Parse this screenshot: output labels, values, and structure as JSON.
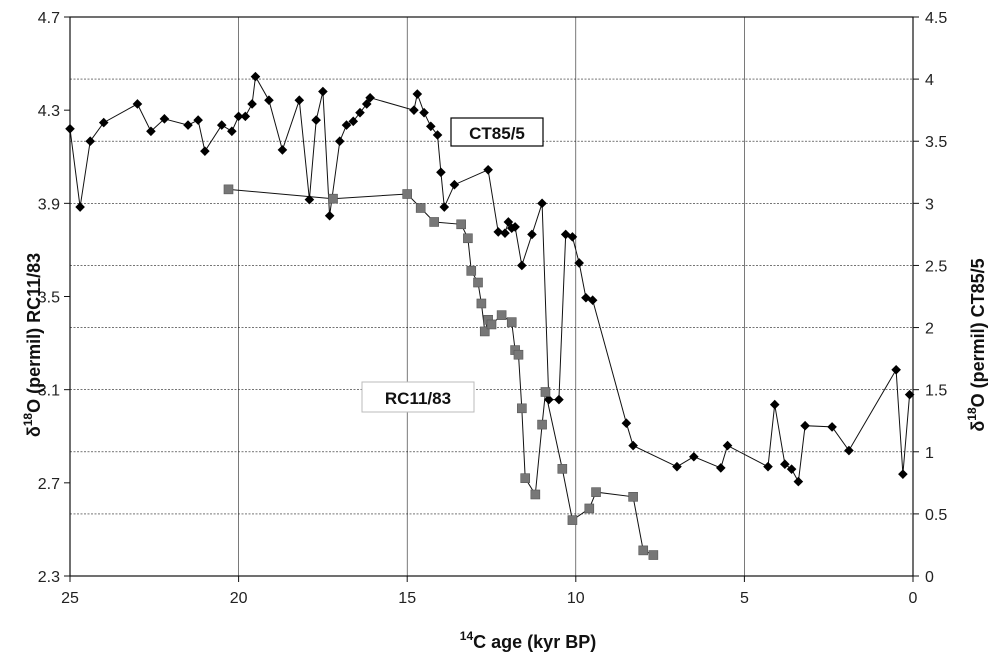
{
  "chart_data": {
    "type": "scatter",
    "xlabel": "14C age (kyr BP)",
    "xlabel_sup": "14",
    "xlabel_main": "C age (kyr BP)",
    "ylabel_left": "δ18O (permil) RC11/83",
    "ylabel_left_delta": "δ",
    "ylabel_left_sup": "18",
    "ylabel_left_main": "O (permil) RC11/83",
    "ylabel_right": "δ18O (permil) CT85/5",
    "ylabel_right_delta": "δ",
    "ylabel_right_sup": "18",
    "ylabel_right_main": "O (permil) CT85/5",
    "xlim": [
      25,
      0
    ],
    "x_reversed": true,
    "ylim_left": [
      2.3,
      4.7
    ],
    "ylim_right": [
      0,
      4.5
    ],
    "x_ticks": [
      25,
      20,
      15,
      10,
      5,
      0
    ],
    "x_tick_labels": [
      "25",
      "20",
      "15",
      "10",
      "5",
      "0"
    ],
    "y_left_ticks": [
      2.3,
      2.7,
      3.1,
      3.5,
      3.9,
      4.3,
      4.7
    ],
    "y_left_tick_labels": [
      "2.3",
      "2.7",
      "3.1",
      "3.5",
      "3.9",
      "4.3",
      "4.7"
    ],
    "y_right_ticks": [
      0,
      0.5,
      1,
      1.5,
      2,
      2.5,
      3,
      3.5,
      4,
      4.5
    ],
    "y_right_tick_labels": [
      "0",
      "0.5",
      "1",
      "1.5",
      "2",
      "2.5",
      "3",
      "3.5",
      "4",
      "4.5"
    ],
    "grid": "vertical lines at x ticks, horizontal lines at right-axis ticks",
    "series": [
      {
        "name": "CT85/5",
        "axis": "right",
        "marker": "diamond",
        "color": "#000000",
        "x": [
          25,
          24.7,
          24.4,
          24,
          23,
          22.6,
          22.2,
          21.5,
          21.2,
          21,
          20.5,
          20.2,
          20,
          19.8,
          19.6,
          19.5,
          19.1,
          18.7,
          18.2,
          17.9,
          17.7,
          17.5,
          17.3,
          17,
          16.8,
          16.6,
          16.4,
          16.2,
          16.1,
          14.8,
          14.7,
          14.5,
          14.3,
          14.1,
          14,
          13.9,
          13.6,
          12.6,
          12.3,
          12.1,
          12,
          11.9,
          11.8,
          11.6,
          11.3,
          11,
          10.8,
          10.5,
          10.3,
          10.1,
          9.9,
          9.7,
          9.5,
          8.5,
          8.3,
          7,
          6.5,
          5.7,
          5.5,
          4.3,
          4.1,
          3.8,
          3.6,
          3.4,
          3.2,
          2.4,
          1.9,
          0.5,
          0.3,
          0.1
        ],
        "y": [
          3.6,
          2.97,
          3.5,
          3.65,
          3.8,
          3.58,
          3.68,
          3.63,
          3.67,
          3.42,
          3.63,
          3.58,
          3.7,
          3.7,
          3.8,
          4.02,
          3.83,
          3.43,
          3.83,
          3.03,
          3.67,
          3.9,
          2.9,
          3.5,
          3.63,
          3.66,
          3.73,
          3.8,
          3.85,
          3.75,
          3.88,
          3.73,
          3.62,
          3.55,
          3.25,
          2.97,
          3.15,
          3.27,
          2.77,
          2.76,
          2.85,
          2.8,
          2.81,
          2.5,
          2.75,
          3.0,
          1.42,
          1.42,
          2.75,
          2.73,
          2.52,
          2.24,
          2.22,
          1.23,
          1.05,
          0.88,
          0.96,
          0.87,
          1.05,
          0.88,
          1.38,
          0.9,
          0.86,
          0.76,
          1.21,
          1.2,
          1.01,
          1.66,
          0.82,
          1.46
        ]
      },
      {
        "name": "RC11/83",
        "axis": "left",
        "marker": "square",
        "color": "#777777",
        "x": [
          20.3,
          17.2,
          15,
          14.6,
          14.2,
          13.4,
          13.2,
          13.1,
          12.9,
          12.8,
          12.7,
          12.6,
          12.5,
          12.2,
          11.9,
          11.8,
          11.7,
          11.6,
          11.5,
          11.2,
          11,
          10.9,
          10.4,
          10.1,
          9.6,
          9.4,
          8.3,
          8,
          7.7
        ],
        "y": [
          3.96,
          3.92,
          3.94,
          3.88,
          3.82,
          3.81,
          3.75,
          3.61,
          3.56,
          3.47,
          3.35,
          3.4,
          3.38,
          3.42,
          3.39,
          3.27,
          3.25,
          3.02,
          2.72,
          2.65,
          2.95,
          3.09,
          2.76,
          2.54,
          2.59,
          2.66,
          2.64,
          2.41,
          2.39
        ]
      }
    ],
    "annotations": [
      {
        "text": "CT85/5",
        "near_x": 12.4,
        "near_y_right": 3.48
      },
      {
        "text": "RC11/83",
        "near_x": 12.3,
        "near_y_left": 3.07
      }
    ]
  }
}
